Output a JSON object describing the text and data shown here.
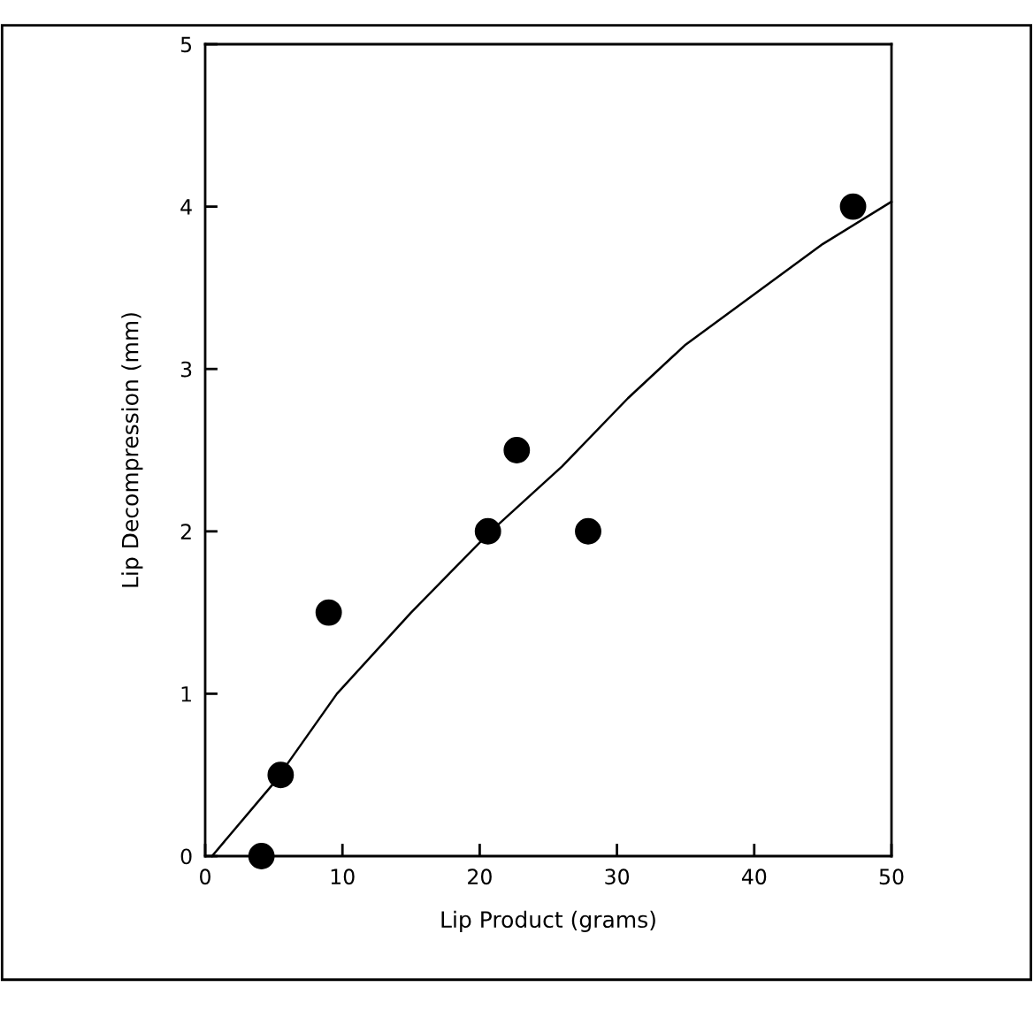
{
  "chart_data": {
    "type": "scatter",
    "xlabel": "Lip Product (grams)",
    "ylabel": "Lip Decompression (mm)",
    "xlim": [
      0,
      50
    ],
    "ylim": [
      0,
      5
    ],
    "xticks": [
      0,
      10,
      20,
      30,
      40,
      50
    ],
    "yticks": [
      0,
      1,
      2,
      3,
      4,
      5
    ],
    "grid": false,
    "series": [
      {
        "type": "scatter",
        "marker": "circle",
        "color": "#000000",
        "x": [
          4.1,
          5.5,
          9.0,
          20.6,
          22.7,
          27.9,
          47.2
        ],
        "values": [
          0,
          0.5,
          1.5,
          2.0,
          2.5,
          2.0,
          4.0
        ]
      },
      {
        "type": "line",
        "color": "#000000",
        "x": [
          0.5,
          5,
          9.6,
          15,
          20.8,
          26,
          30.8,
          35,
          40,
          45,
          50
        ],
        "values": [
          0,
          0.45,
          1.0,
          1.5,
          2.0,
          2.4,
          2.82,
          3.15,
          3.46,
          3.77,
          4.03
        ]
      }
    ]
  }
}
